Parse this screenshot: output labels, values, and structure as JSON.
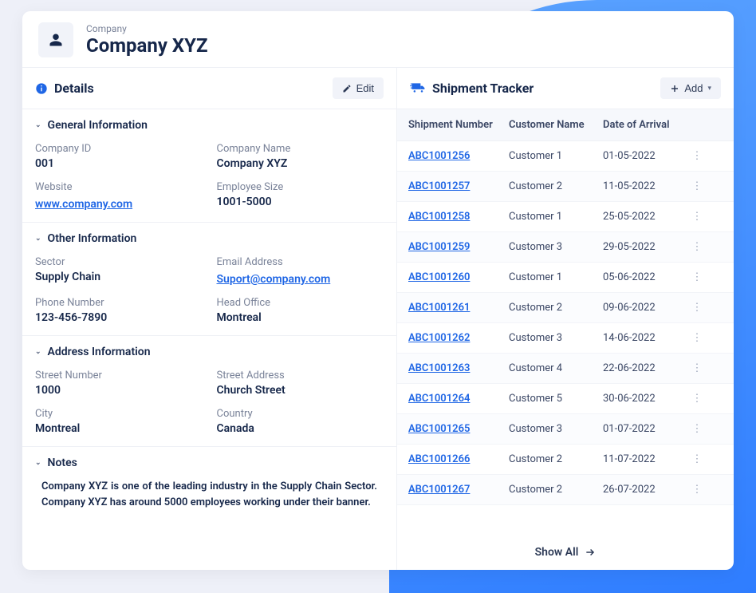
{
  "header": {
    "label": "Company",
    "title": "Company XYZ"
  },
  "details": {
    "panel_title": "Details",
    "edit_label": "Edit",
    "sections": {
      "general": {
        "title": "General Information",
        "company_id_label": "Company ID",
        "company_id": "001",
        "company_name_label": "Company Name",
        "company_name": "Company XYZ",
        "website_label": "Website",
        "website": "www.company.com",
        "employee_size_label": "Employee Size",
        "employee_size": "1001-5000"
      },
      "other": {
        "title": "Other Information",
        "sector_label": "Sector",
        "sector": "Supply Chain",
        "email_label": "Email Address",
        "email": "Suport@company.com",
        "phone_label": "Phone Number",
        "phone": "123-456-7890",
        "head_office_label": "Head Office",
        "head_office": "Montreal"
      },
      "address": {
        "title": "Address Information",
        "street_number_label": "Street Number",
        "street_number": "1000",
        "street_address_label": "Street Address",
        "street_address": "Church Street",
        "city_label": "City",
        "city": "Montreal",
        "country_label": "Country",
        "country": "Canada"
      },
      "notes": {
        "title": "Notes",
        "body": "Company XYZ is one of the leading industry in the Supply Chain Sector. Company XYZ has around 5000 employees working under their banner."
      }
    }
  },
  "tracker": {
    "panel_title": "Shipment Tracker",
    "add_label": "Add",
    "show_all_label": "Show All",
    "columns": {
      "shipment_number": "Shipment Number",
      "customer_name": "Customer Name",
      "date_of_arrival": "Date of Arrival"
    },
    "rows": [
      {
        "ship": "ABC1001256",
        "cust": "Customer 1",
        "date": "01-05-2022"
      },
      {
        "ship": "ABC1001257",
        "cust": "Customer 2",
        "date": "11-05-2022"
      },
      {
        "ship": "ABC1001258",
        "cust": "Customer 1",
        "date": "25-05-2022"
      },
      {
        "ship": "ABC1001259",
        "cust": "Customer 3",
        "date": "29-05-2022"
      },
      {
        "ship": "ABC1001260",
        "cust": "Customer 1",
        "date": "05-06-2022"
      },
      {
        "ship": "ABC1001261",
        "cust": "Customer 2",
        "date": "09-06-2022"
      },
      {
        "ship": "ABC1001262",
        "cust": "Customer 3",
        "date": "14-06-2022"
      },
      {
        "ship": "ABC1001263",
        "cust": "Customer 4",
        "date": "22-06-2022"
      },
      {
        "ship": "ABC1001264",
        "cust": "Customer 5",
        "date": "30-06-2022"
      },
      {
        "ship": "ABC1001265",
        "cust": "Customer 3",
        "date": "01-07-2022"
      },
      {
        "ship": "ABC1001266",
        "cust": "Customer 2",
        "date": "11-07-2022"
      },
      {
        "ship": "ABC1001267",
        "cust": "Customer 2",
        "date": "26-07-2022"
      }
    ]
  },
  "colors": {
    "accent": "#1f66e5",
    "text_dark": "#16274a",
    "text_muted": "#7a8399",
    "panel_bg": "#ffffff",
    "page_bg": "#eef0f8",
    "border": "#eef0f5",
    "table_head_bg": "#f6f8fc",
    "button_bg": "#f1f3f9",
    "bg_gradient_from": "#5ca4ff",
    "bg_gradient_to": "#2f7dff"
  }
}
